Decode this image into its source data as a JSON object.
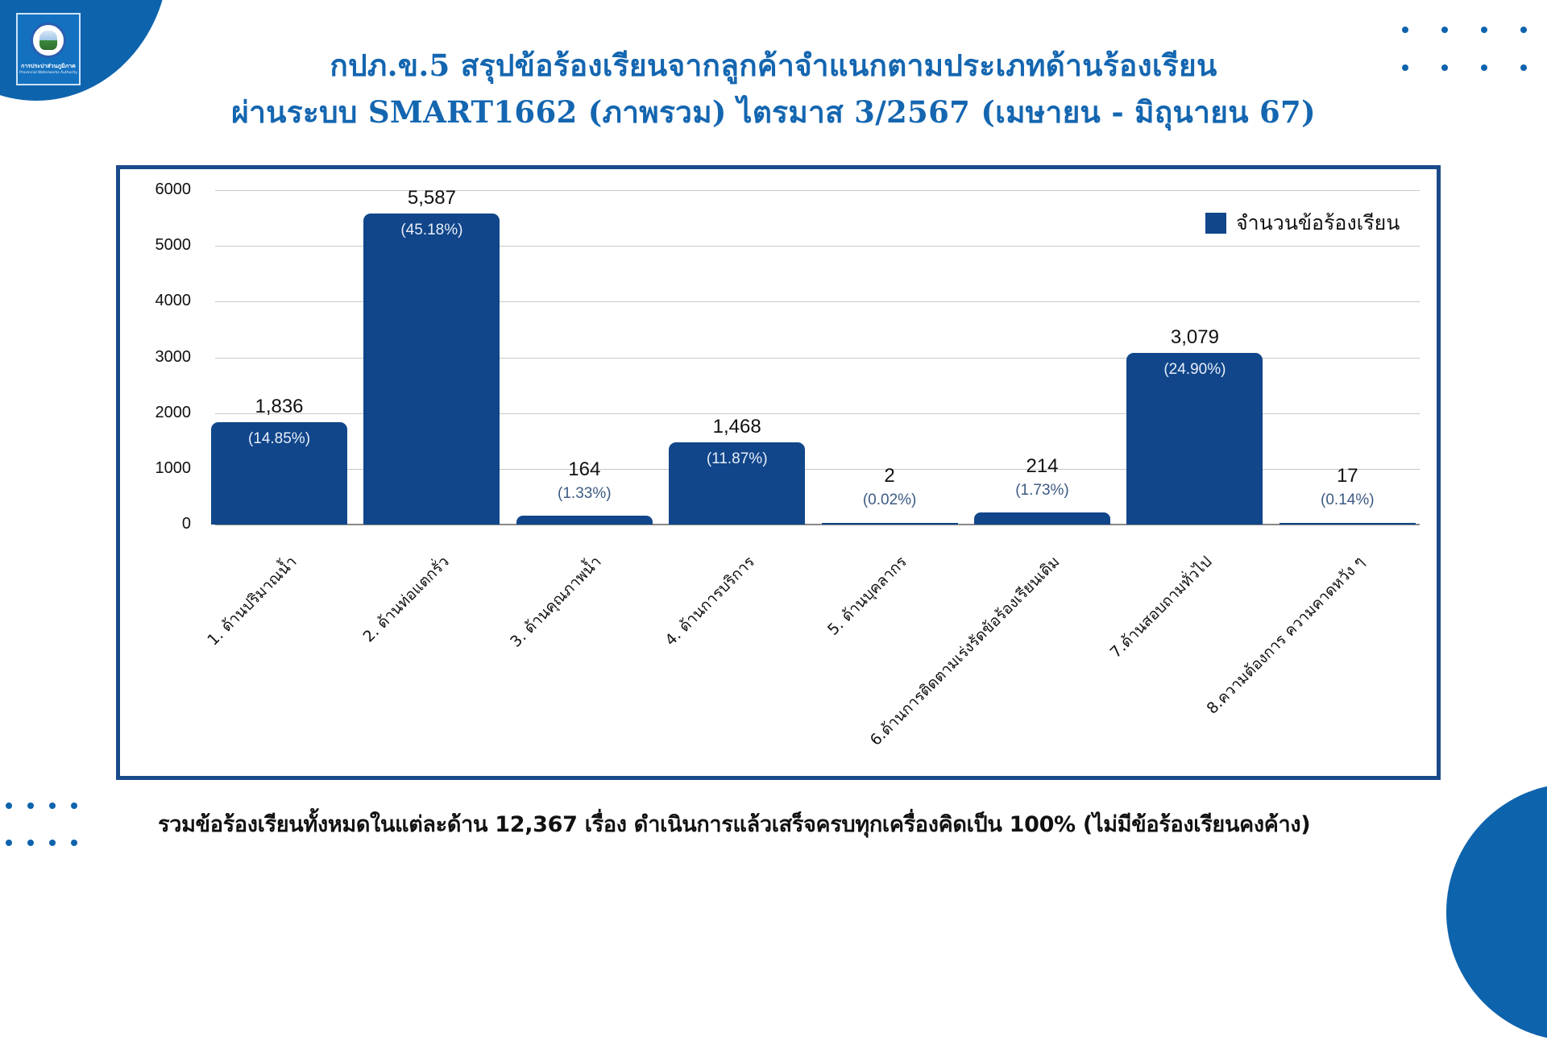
{
  "header": {
    "logo": {
      "name_th": "การประปาส่วนภูมิภาค",
      "name_en": "Provincial Waterworks Authority",
      "icon": "pwa-emblem-icon"
    },
    "title_line1": "กปภ.ข.5 สรุปข้อร้องเรียนจากลูกค้าจำแนกตามประเภทด้านร้องเรียน",
    "title_line2": "ผ่านระบบ SMART1662 (ภาพรวม) ไตรมาส 3/2567 (เมษายน - มิถุนายน 67)"
  },
  "colors": {
    "bar": "#11468a",
    "frame": "#1a4a8a",
    "accent": "#0e63ad",
    "title": "#1466b0"
  },
  "chart_data": {
    "type": "bar",
    "title": "กปภ.ข.5 สรุปข้อร้องเรียนจากลูกค้าจำแนกตามประเภทด้านร้องเรียน ผ่านระบบ SMART1662 (ภาพรวม) ไตรมาส 3/2567 (เมษายน - มิถุนายน 67)",
    "categories": [
      "1. ด้านปริมาณน้ำ",
      "2. ด้านท่อแตกรั่ว",
      "3. ด้านคุณภาพน้ำ",
      "4. ด้านการบริการ",
      "5. ด้านบุคลากร",
      "6.ด้านการติดตามเร่งรัดข้อร้องเรียนเดิม",
      "7.ด้านสอบถามทั่วไป",
      "8.ความต้องการ ความคาดหวัง ๆ"
    ],
    "series": [
      {
        "name": "จำนวนข้อร้องเรียน",
        "values": [
          1836,
          5587,
          164,
          1468,
          2,
          214,
          3079,
          17
        ]
      }
    ],
    "value_labels": [
      "1,836",
      "5,587",
      "164",
      "1,468",
      "2",
      "214",
      "3,079",
      "17"
    ],
    "percent_labels": [
      "(14.85%)",
      "(45.18%)",
      "(1.33%)",
      "(11.87%)",
      "(0.02%)",
      "(1.73%)",
      "(24.90%)",
      "(0.14%)"
    ],
    "y_ticks": [
      "0",
      "1000",
      "2000",
      "3000",
      "4000",
      "5000",
      "6000"
    ],
    "ylim": [
      0,
      6000
    ],
    "xlabel": "",
    "ylabel": "",
    "grid": true,
    "legend_position": "top-right"
  },
  "legend": {
    "label": "จำนวนข้อร้องเรียน"
  },
  "footer": {
    "summary": "รวมข้อร้องเรียนทั้งหมดในแต่ละด้าน 12,367 เรื่อง ดำเนินการแล้วเสร็จครบทุกเครื่องคิดเป็น 100% (ไม่มีข้อร้องเรียนคงค้าง)"
  }
}
